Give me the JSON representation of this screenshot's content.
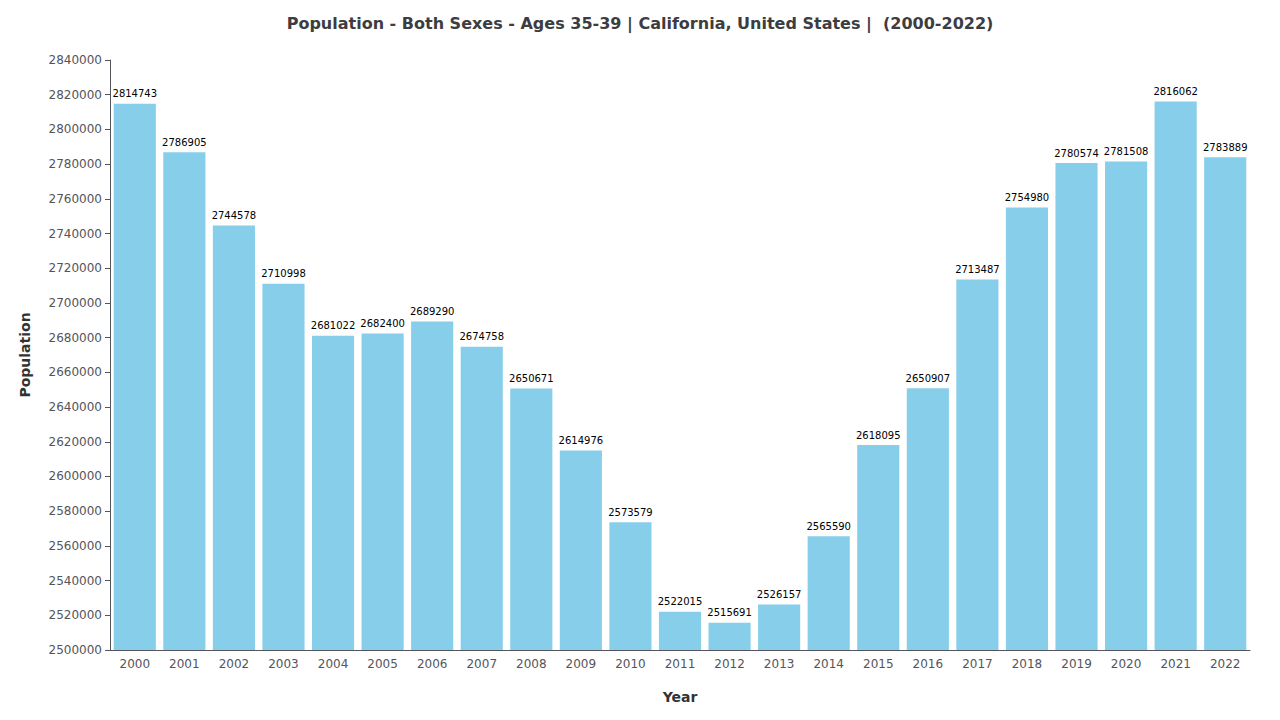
{
  "chart_data": {
    "type": "bar",
    "title": "Population - Both Sexes - Ages 35-39 | California, United States |  (2000-2022)",
    "xlabel": "Year",
    "ylabel": "Population",
    "categories": [
      "2000",
      "2001",
      "2002",
      "2003",
      "2004",
      "2005",
      "2006",
      "2007",
      "2008",
      "2009",
      "2010",
      "2011",
      "2012",
      "2013",
      "2014",
      "2015",
      "2016",
      "2017",
      "2018",
      "2019",
      "2020",
      "2021",
      "2022"
    ],
    "values": [
      2814743,
      2786905,
      2744578,
      2710998,
      2681022,
      2682400,
      2689290,
      2674758,
      2650671,
      2614976,
      2573579,
      2522015,
      2515691,
      2526157,
      2565590,
      2618095,
      2650907,
      2713487,
      2754980,
      2780574,
      2781508,
      2816062,
      2783889
    ],
    "color": "#87CEEB",
    "ylim": [
      2500000,
      2840000
    ],
    "yticks": [
      2500000,
      2520000,
      2540000,
      2560000,
      2580000,
      2600000,
      2620000,
      2640000,
      2660000,
      2680000,
      2700000,
      2720000,
      2740000,
      2760000,
      2780000,
      2800000,
      2820000,
      2840000
    ],
    "data_labels": true,
    "grid": false
  }
}
